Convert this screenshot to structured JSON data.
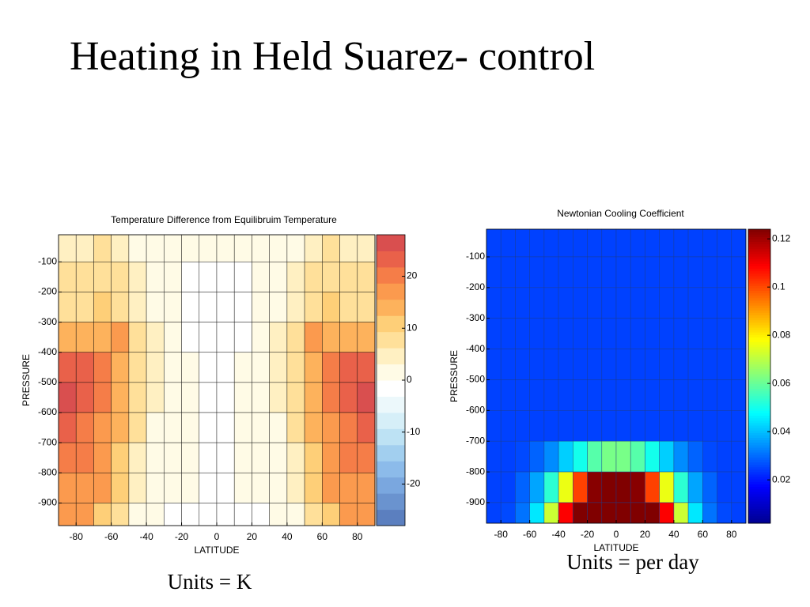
{
  "title": "Heating in Held Suarez- control",
  "chart_data": [
    {
      "type": "heatmap",
      "title": "Temperature Difference from Equilibruim Temperature",
      "xlabel": "LATITUDE",
      "ylabel": "PRESSURE",
      "units_label": "Units = K",
      "x": [
        -85,
        -75,
        -65,
        -55,
        -45,
        -35,
        -25,
        -15,
        -5,
        5,
        15,
        25,
        35,
        45,
        55,
        65,
        75,
        85
      ],
      "y": [
        -50,
        -150,
        -250,
        -350,
        -450,
        -550,
        -650,
        -750,
        -850,
        -950
      ],
      "values": [
        [
          5,
          5,
          7,
          6,
          3,
          1,
          1,
          0,
          0,
          0,
          0,
          1,
          1,
          3,
          6,
          7,
          5,
          5
        ],
        [
          8,
          8,
          9,
          8,
          5,
          2,
          0,
          -2,
          -3,
          -3,
          -2,
          0,
          2,
          5,
          8,
          9,
          8,
          8
        ],
        [
          8,
          9,
          10,
          9,
          6,
          3,
          1,
          -1,
          -2,
          -2,
          -1,
          1,
          3,
          6,
          9,
          10,
          9,
          8
        ],
        [
          14,
          15,
          15,
          16,
          8,
          4,
          1,
          -1,
          -2,
          -2,
          -1,
          1,
          4,
          8,
          16,
          15,
          15,
          14
        ],
        [
          24,
          22,
          19,
          13,
          7,
          4,
          2,
          0,
          -2,
          -2,
          0,
          2,
          4,
          7,
          13,
          19,
          22,
          24
        ],
        [
          25,
          23,
          20,
          14,
          8,
          4,
          2,
          0,
          -2,
          -2,
          0,
          2,
          4,
          8,
          14,
          20,
          23,
          25
        ],
        [
          23,
          21,
          18,
          13,
          7,
          3,
          1,
          0,
          -1,
          -1,
          0,
          1,
          3,
          7,
          13,
          18,
          21,
          23
        ],
        [
          21,
          20,
          17,
          12,
          6,
          3,
          1,
          0,
          -1,
          -1,
          0,
          1,
          3,
          6,
          12,
          17,
          20,
          21
        ],
        [
          18,
          18,
          16,
          11,
          5,
          2,
          0,
          0,
          -1,
          -1,
          0,
          0,
          2,
          5,
          11,
          16,
          18,
          18
        ],
        [
          16,
          16,
          12,
          8,
          3,
          1,
          -1,
          -2,
          -2,
          -2,
          -2,
          -1,
          1,
          3,
          8,
          12,
          16,
          16
        ]
      ],
      "xlim": [
        -90,
        90
      ],
      "ylim": [
        -975,
        -10
      ],
      "xticks": [
        -80,
        -60,
        -40,
        -20,
        0,
        20,
        40,
        60,
        80
      ],
      "yticks": [
        -100,
        -200,
        -300,
        -400,
        -500,
        -600,
        -700,
        -800,
        -900
      ],
      "clim": [
        -28,
        28
      ],
      "colorbar_ticks": [
        20,
        10,
        0,
        -10,
        -20
      ],
      "discrete": true,
      "colormap": [
        "#5b7fbf",
        "#6a93cf",
        "#7aa7df",
        "#8cbbea",
        "#a2cfef",
        "#bde2f4",
        "#d6eff8",
        "#ecf8fb",
        "#ffffff",
        "#fffbe6",
        "#fff0c2",
        "#ffe09a",
        "#fecf78",
        "#fdb25c",
        "#fb9a4e",
        "#f57d48",
        "#e9614a",
        "#d94f4f"
      ],
      "grid_color": "#000000"
    },
    {
      "type": "heatmap",
      "title": "Newtonian Cooling Coefficient",
      "xlabel": "LATITUDE",
      "ylabel": "PRESSURE",
      "units_label": "Units = per day",
      "x": [
        -85,
        -75,
        -65,
        -55,
        -45,
        -35,
        -25,
        -15,
        -5,
        5,
        15,
        25,
        35,
        45,
        55,
        65,
        75,
        85
      ],
      "y": [
        -50,
        -150,
        -250,
        -350,
        -450,
        -550,
        -650,
        -750,
        -850,
        -950
      ],
      "values": [
        [
          0.025,
          0.025,
          0.025,
          0.025,
          0.025,
          0.025,
          0.025,
          0.025,
          0.025,
          0.025,
          0.025,
          0.025,
          0.025,
          0.025,
          0.025,
          0.025,
          0.025,
          0.025
        ],
        [
          0.025,
          0.025,
          0.025,
          0.025,
          0.025,
          0.025,
          0.025,
          0.025,
          0.025,
          0.025,
          0.025,
          0.025,
          0.025,
          0.025,
          0.025,
          0.025,
          0.025,
          0.025
        ],
        [
          0.025,
          0.025,
          0.025,
          0.025,
          0.025,
          0.025,
          0.025,
          0.025,
          0.025,
          0.025,
          0.025,
          0.025,
          0.025,
          0.025,
          0.025,
          0.025,
          0.025,
          0.025
        ],
        [
          0.025,
          0.025,
          0.025,
          0.025,
          0.025,
          0.025,
          0.025,
          0.025,
          0.025,
          0.025,
          0.025,
          0.025,
          0.025,
          0.025,
          0.025,
          0.025,
          0.025,
          0.025
        ],
        [
          0.025,
          0.025,
          0.025,
          0.025,
          0.025,
          0.025,
          0.025,
          0.025,
          0.025,
          0.025,
          0.025,
          0.025,
          0.025,
          0.025,
          0.025,
          0.025,
          0.025,
          0.025
        ],
        [
          0.025,
          0.025,
          0.025,
          0.025,
          0.025,
          0.025,
          0.025,
          0.025,
          0.025,
          0.025,
          0.025,
          0.025,
          0.025,
          0.025,
          0.025,
          0.025,
          0.025,
          0.025
        ],
        [
          0.025,
          0.025,
          0.025,
          0.025,
          0.025,
          0.025,
          0.025,
          0.025,
          0.025,
          0.025,
          0.025,
          0.025,
          0.025,
          0.025,
          0.025,
          0.025,
          0.025,
          0.025
        ],
        [
          0.025,
          0.025,
          0.026,
          0.029,
          0.034,
          0.042,
          0.05,
          0.058,
          0.062,
          0.062,
          0.058,
          0.05,
          0.042,
          0.034,
          0.029,
          0.026,
          0.025,
          0.025
        ],
        [
          0.025,
          0.025,
          0.029,
          0.037,
          0.053,
          0.076,
          0.101,
          0.123,
          0.136,
          0.136,
          0.123,
          0.101,
          0.076,
          0.053,
          0.037,
          0.029,
          0.025,
          0.025
        ],
        [
          0.025,
          0.026,
          0.031,
          0.045,
          0.072,
          0.109,
          0.152,
          0.188,
          0.21,
          0.21,
          0.188,
          0.152,
          0.109,
          0.072,
          0.045,
          0.031,
          0.026,
          0.025
        ]
      ],
      "xlim": [
        -90,
        90
      ],
      "ylim": [
        -967,
        -10
      ],
      "xticks": [
        -80,
        -60,
        -40,
        -20,
        0,
        20,
        40,
        60,
        80
      ],
      "yticks": [
        -100,
        -200,
        -300,
        -400,
        -500,
        -600,
        -700,
        -800,
        -900
      ],
      "clim": [
        0.002,
        0.124
      ],
      "colorbar_ticks": [
        0.12,
        0.1,
        0.08,
        0.06,
        0.04,
        0.02
      ],
      "discrete": false,
      "colormap": [
        "#00008f",
        "#0000ff",
        "#0080ff",
        "#00ffff",
        "#80ff80",
        "#ffff00",
        "#ff8000",
        "#ff0000",
        "#800000"
      ],
      "grid_color": "#1a3a8a"
    }
  ]
}
